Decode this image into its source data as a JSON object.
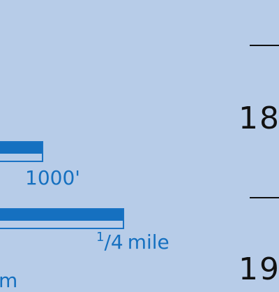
{
  "scale": {
    "feet_label": "1000'",
    "mile_numerator": "1",
    "mile_slash": "/",
    "mile_denominator": "4",
    "mile_unit": "mile",
    "partial_label": "m"
  },
  "grid": {
    "row_18": "18",
    "row_19": "19"
  },
  "colors": {
    "background": "#b7cce8",
    "scale_blue": "#1570c0",
    "grid_black": "#111111"
  }
}
